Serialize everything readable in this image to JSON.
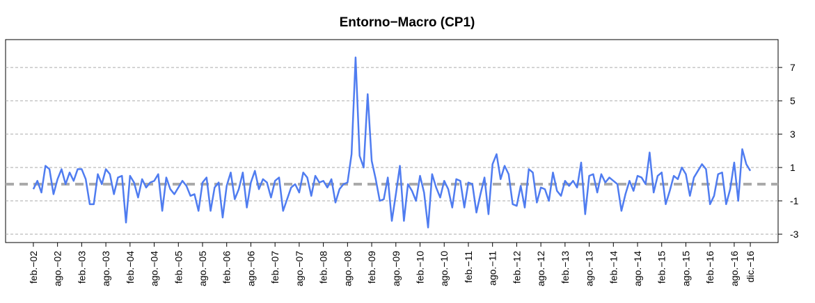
{
  "chart_data": {
    "type": "line",
    "title": "Entorno−Macro (CP1)",
    "categories": [
      "feb.−02",
      null,
      null,
      null,
      null,
      null,
      "ago.−02",
      null,
      null,
      null,
      null,
      null,
      "feb.−03",
      null,
      null,
      null,
      null,
      null,
      "ago.−03",
      null,
      null,
      null,
      null,
      null,
      "feb.−04",
      null,
      null,
      null,
      null,
      null,
      "ago.−04",
      null,
      null,
      null,
      null,
      null,
      "feb.−05",
      null,
      null,
      null,
      null,
      null,
      "ago.−05",
      null,
      null,
      null,
      null,
      null,
      "feb.−06",
      null,
      null,
      null,
      null,
      null,
      "ago.−06",
      null,
      null,
      null,
      null,
      null,
      "feb.−07",
      null,
      null,
      null,
      null,
      null,
      "ago.−07",
      null,
      null,
      null,
      null,
      null,
      "feb.−08",
      null,
      null,
      null,
      null,
      null,
      "ago.−08",
      null,
      null,
      null,
      null,
      null,
      "feb.−09",
      null,
      null,
      null,
      null,
      null,
      "ago.−09",
      null,
      null,
      null,
      null,
      null,
      "feb.−10",
      null,
      null,
      null,
      null,
      null,
      "ago.−10",
      null,
      null,
      null,
      null,
      null,
      "feb.−11",
      null,
      null,
      null,
      null,
      null,
      "ago.−11",
      null,
      null,
      null,
      null,
      null,
      "feb.−12",
      null,
      null,
      null,
      null,
      null,
      "ago.−12",
      null,
      null,
      null,
      null,
      null,
      "feb.−13",
      null,
      null,
      null,
      null,
      null,
      "ago.−13",
      null,
      null,
      null,
      null,
      null,
      "feb.−14",
      null,
      null,
      null,
      null,
      null,
      "ago.−14",
      null,
      null,
      null,
      null,
      null,
      "feb.−15",
      null,
      null,
      null,
      null,
      null,
      "ago.−15",
      null,
      null,
      null,
      null,
      null,
      "feb.−16",
      null,
      null,
      null,
      null,
      null,
      "ago.−16",
      null,
      null,
      null,
      "dic.−16"
    ],
    "values": [
      -0.3,
      0.2,
      -0.5,
      1.1,
      0.9,
      -0.6,
      0.3,
      0.9,
      0.0,
      0.7,
      0.2,
      0.9,
      0.9,
      0.3,
      -1.2,
      -1.2,
      0.6,
      0.0,
      0.9,
      0.6,
      -0.6,
      0.4,
      0.5,
      -2.3,
      0.5,
      0.1,
      -0.8,
      0.3,
      -0.2,
      0.1,
      0.2,
      0.6,
      -1.6,
      0.4,
      -0.3,
      -0.6,
      -0.2,
      0.2,
      -0.1,
      -0.7,
      -0.6,
      -1.6,
      0.1,
      0.4,
      -1.6,
      -0.2,
      0.1,
      -2.0,
      -0.1,
      0.7,
      -0.9,
      -0.3,
      0.7,
      -1.4,
      0.1,
      0.8,
      -0.3,
      0.3,
      0.1,
      -0.8,
      0.2,
      0.4,
      -1.6,
      -0.9,
      -0.2,
      0.0,
      -0.5,
      0.7,
      0.4,
      -0.7,
      0.5,
      0.1,
      0.2,
      -0.2,
      0.3,
      -1.1,
      -0.3,
      0.0,
      0.1,
      1.8,
      7.6,
      1.7,
      1.0,
      5.4,
      1.4,
      0.3,
      -1.0,
      -0.9,
      0.4,
      -2.2,
      -0.6,
      1.1,
      -2.2,
      0.0,
      -0.4,
      -1.0,
      0.5,
      -0.5,
      -2.6,
      0.6,
      -0.2,
      -0.8,
      0.2,
      -0.3,
      -1.4,
      0.3,
      0.2,
      -1.4,
      0.1,
      0.0,
      -1.7,
      -0.6,
      0.4,
      -1.8,
      1.2,
      1.8,
      0.3,
      1.1,
      0.6,
      -1.2,
      -1.3,
      -0.1,
      -1.4,
      0.9,
      0.7,
      -1.1,
      -0.2,
      -0.3,
      -1.0,
      0.7,
      -0.4,
      -0.7,
      0.2,
      -0.1,
      0.2,
      -0.2,
      1.3,
      -1.8,
      0.5,
      0.6,
      -0.5,
      0.6,
      0.1,
      0.4,
      0.2,
      0.0,
      -1.6,
      -0.6,
      0.2,
      -0.4,
      0.5,
      0.4,
      0.0,
      1.9,
      -0.5,
      0.5,
      0.7,
      -1.2,
      -0.4,
      0.5,
      0.3,
      1.0,
      0.6,
      -0.7,
      0.4,
      0.8,
      1.2,
      0.9,
      -1.2,
      -0.7,
      0.6,
      0.7,
      -1.2,
      -0.3,
      1.3,
      -1.0,
      2.1,
      1.2,
      0.8
    ],
    "color": "#4f7cf0",
    "hline": 0,
    "hline_color": "#aaaaaa",
    "ylim": [
      -3.5,
      8.67
    ],
    "yticks": [
      -3,
      -1,
      1,
      3,
      5,
      7
    ],
    "grid": true,
    "y_axis_side": "right"
  }
}
